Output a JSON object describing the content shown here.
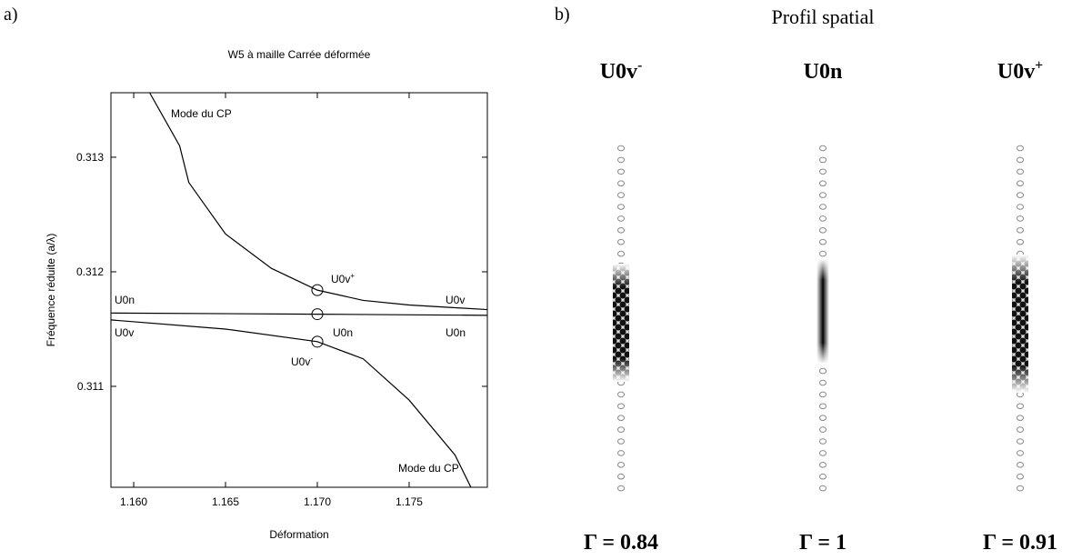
{
  "panels": {
    "a": "a)",
    "b": "b)",
    "b_title": "Profil spatial"
  },
  "chart_data": {
    "type": "line",
    "title": "W5 à maille Carrée déformée",
    "x_label": "Déformation",
    "y_label": "Fréquence réduite (a/λ)",
    "xlim": [
      1.15876,
      1.17926
    ],
    "ylim": [
      0.310119,
      0.313563
    ],
    "xticks": [
      {
        "value": 1.16,
        "label": "1.160"
      },
      1.165,
      {
        "value": 1.17,
        "label": "1.170"
      },
      1.175
    ],
    "yticks": [
      0.311,
      0.312,
      0.313
    ],
    "series": [
      {
        "color": "#000000",
        "x": [
          1.16088,
          1.1625,
          1.163,
          1.165,
          1.1675,
          1.17,
          1.1725,
          1.175,
          1.17926
        ],
        "values": [
          0.31356,
          0.3131,
          0.31278,
          0.31233,
          0.31203,
          0.31184,
          0.31175,
          0.31171,
          0.31167
        ]
      },
      {
        "color": "#000000",
        "x": [
          1.15876,
          1.17,
          1.17926
        ],
        "values": [
          0.31164,
          0.31163,
          0.31162
        ]
      },
      {
        "color": "#000000",
        "x": [
          1.15876,
          1.165,
          1.17,
          1.1725,
          1.175,
          1.1775,
          1.17836
        ],
        "values": [
          0.31158,
          0.3115,
          0.31139,
          0.31124,
          0.31088,
          0.3104,
          0.31012
        ]
      }
    ],
    "markers": {
      "x": [
        1.17,
        1.17,
        1.17
      ],
      "values": [
        0.31184,
        0.31163,
        0.31139
      ]
    },
    "annotations": [
      {
        "text": "Mode du CP"
      },
      {
        "text": "U0v",
        "sup": "+"
      },
      {
        "text": "U0n"
      },
      {
        "text": "U0v"
      },
      {
        "text": "U0n"
      },
      {
        "text": "U0n"
      },
      {
        "text": "U0n"
      },
      {
        "text": "U0v"
      },
      {
        "text": "U0v",
        "sup": "-"
      },
      {
        "text": "Mode du CP"
      }
    ]
  },
  "profiles": [
    {
      "label": "U0v",
      "sup": "-",
      "gamma": "Γ = 0.84"
    },
    {
      "label": "U0n",
      "gamma": "Γ = 1"
    },
    {
      "label": "U0v",
      "sup": "+",
      "gamma": "Γ = 0.91"
    }
  ]
}
